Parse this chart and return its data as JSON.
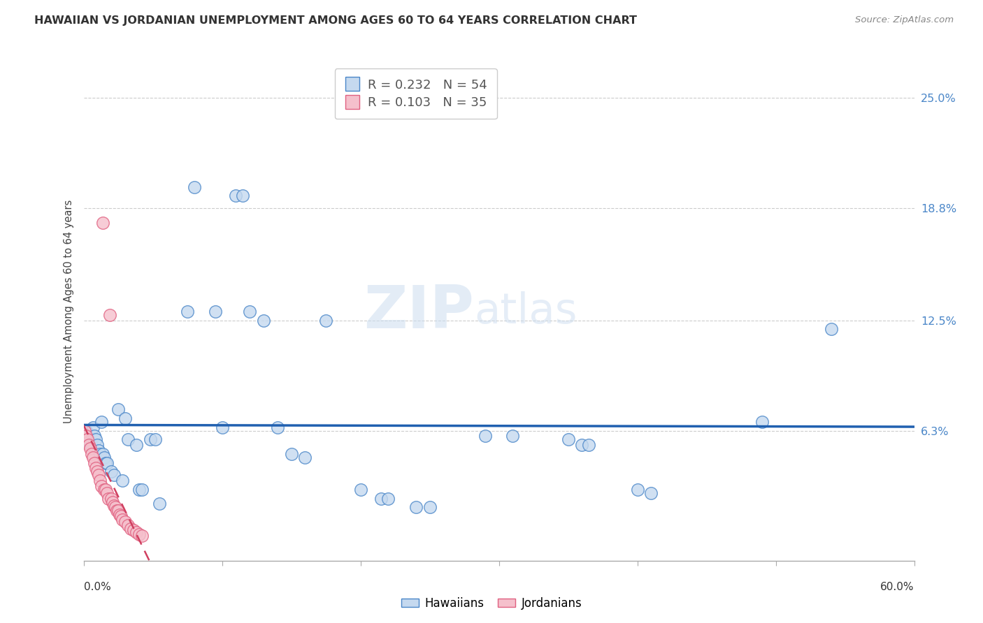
{
  "title": "HAWAIIAN VS JORDANIAN UNEMPLOYMENT AMONG AGES 60 TO 64 YEARS CORRELATION CHART",
  "source": "Source: ZipAtlas.com",
  "ylabel": "Unemployment Among Ages 60 to 64 years",
  "ytick_values": [
    0.0,
    0.063,
    0.125,
    0.188,
    0.25
  ],
  "ytick_labels": [
    "",
    "6.3%",
    "12.5%",
    "18.8%",
    "25.0%"
  ],
  "xlim": [
    0.0,
    0.6
  ],
  "ylim": [
    -0.01,
    0.27
  ],
  "legend1_r": "0.232",
  "legend1_n": "54",
  "legend2_r": "0.103",
  "legend2_n": "35",
  "color_hawaiian_fill": "#c5d9ef",
  "color_hawaiian_edge": "#4a86c8",
  "color_jordanian_fill": "#f5c0cc",
  "color_jordanian_edge": "#e06080",
  "color_hawaiian_line": "#2060b0",
  "color_jordanian_line": "#d04060",
  "background_color": "#ffffff",
  "watermark_zip": "ZIP",
  "watermark_atlas": "atlas",
  "hawaiian_x": [
    0.002,
    0.003,
    0.004,
    0.005,
    0.006,
    0.007,
    0.008,
    0.009,
    0.01,
    0.011,
    0.012,
    0.013,
    0.014,
    0.015,
    0.016,
    0.017,
    0.02,
    0.022,
    0.025,
    0.028,
    0.03,
    0.032,
    0.038,
    0.04,
    0.042,
    0.048,
    0.052,
    0.055,
    0.075,
    0.08,
    0.095,
    0.1,
    0.11,
    0.115,
    0.12,
    0.13,
    0.14,
    0.15,
    0.16,
    0.175,
    0.2,
    0.215,
    0.22,
    0.24,
    0.25,
    0.29,
    0.31,
    0.35,
    0.36,
    0.365,
    0.4,
    0.41,
    0.49,
    0.54
  ],
  "hawaiian_y": [
    0.063,
    0.06,
    0.057,
    0.055,
    0.055,
    0.065,
    0.06,
    0.058,
    0.055,
    0.052,
    0.05,
    0.068,
    0.05,
    0.048,
    0.045,
    0.045,
    0.04,
    0.038,
    0.075,
    0.035,
    0.07,
    0.058,
    0.055,
    0.03,
    0.03,
    0.058,
    0.058,
    0.022,
    0.13,
    0.2,
    0.13,
    0.065,
    0.195,
    0.195,
    0.13,
    0.125,
    0.065,
    0.05,
    0.048,
    0.125,
    0.03,
    0.025,
    0.025,
    0.02,
    0.02,
    0.06,
    0.06,
    0.058,
    0.055,
    0.055,
    0.03,
    0.028,
    0.068,
    0.12
  ],
  "jordanian_x": [
    0.001,
    0.002,
    0.003,
    0.004,
    0.005,
    0.006,
    0.007,
    0.008,
    0.009,
    0.01,
    0.011,
    0.012,
    0.013,
    0.014,
    0.015,
    0.016,
    0.017,
    0.018,
    0.019,
    0.02,
    0.021,
    0.022,
    0.023,
    0.024,
    0.025,
    0.026,
    0.027,
    0.028,
    0.03,
    0.032,
    0.034,
    0.036,
    0.038,
    0.04,
    0.042
  ],
  "jordanian_y": [
    0.063,
    0.06,
    0.058,
    0.055,
    0.053,
    0.05,
    0.048,
    0.045,
    0.042,
    0.04,
    0.038,
    0.035,
    0.032,
    0.18,
    0.03,
    0.03,
    0.028,
    0.025,
    0.128,
    0.025,
    0.023,
    0.021,
    0.02,
    0.018,
    0.018,
    0.016,
    0.015,
    0.013,
    0.012,
    0.01,
    0.008,
    0.007,
    0.006,
    0.005,
    0.004
  ]
}
